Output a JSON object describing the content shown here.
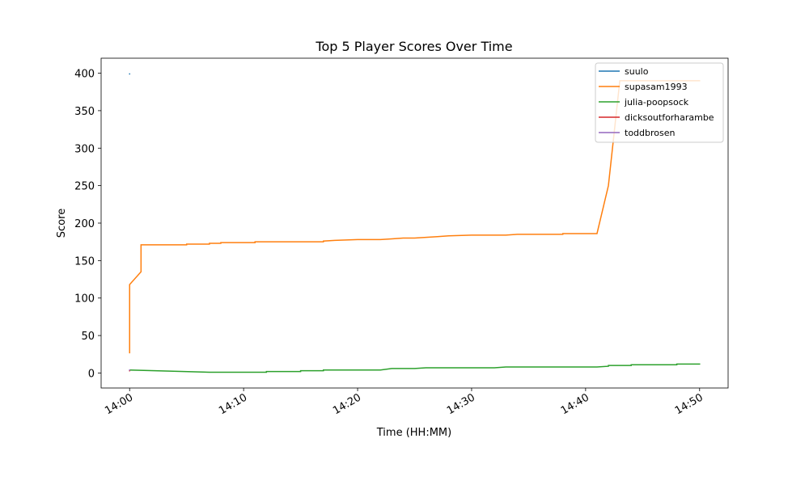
{
  "chart_data": {
    "type": "line",
    "title": "Top 5 Player Scores Over Time",
    "x_label": "Time (HH:MM)",
    "y_label": "Score",
    "xlim": [
      "13:57:30",
      "14:52:30"
    ],
    "xticks": [
      "14:00",
      "14:10",
      "14:20",
      "14:30",
      "14:40",
      "14:50"
    ],
    "ylim": [
      -20,
      420
    ],
    "yticks": [
      0,
      50,
      100,
      150,
      200,
      250,
      300,
      350,
      400
    ],
    "grid": false,
    "legend": "upper right",
    "series": [
      {
        "name": "suulo",
        "color": "#1f77b4",
        "x": [
          "14:00",
          "14:00"
        ],
        "values": [
          399,
          399
        ]
      },
      {
        "name": "supasam1993",
        "color": "#ff7f0e",
        "x": [
          "14:00",
          "14:00",
          "14:01",
          "14:01",
          "14:05",
          "14:05",
          "14:07",
          "14:07",
          "14:08",
          "14:08",
          "14:11",
          "14:11",
          "14:17",
          "14:17",
          "14:18",
          "14:20",
          "14:22",
          "14:23",
          "14:24",
          "14:25",
          "14:26",
          "14:27",
          "14:28",
          "14:30",
          "14:33",
          "14:34",
          "14:38",
          "14:38",
          "14:41",
          "14:42",
          "14:43",
          "14:50"
        ],
        "values": [
          27,
          118,
          135,
          171,
          171,
          172,
          172,
          173,
          173,
          174,
          174,
          175,
          175,
          176,
          177,
          178,
          178,
          179,
          180,
          180,
          181,
          182,
          183,
          184,
          184,
          185,
          185,
          186,
          186,
          250,
          390,
          390
        ]
      },
      {
        "name": "julia-poopsock",
        "color": "#2ca02c",
        "x": [
          "14:00",
          "14:07",
          "14:12",
          "14:12",
          "14:15",
          "14:15",
          "14:17",
          "14:17",
          "14:22",
          "14:23",
          "14:25",
          "14:26",
          "14:32",
          "14:33",
          "14:41",
          "14:42",
          "14:42",
          "14:44",
          "14:44",
          "14:48",
          "14:48",
          "14:50"
        ],
        "values": [
          4,
          1,
          1,
          2,
          2,
          3,
          3,
          4,
          4,
          6,
          6,
          7,
          7,
          8,
          8,
          9,
          10,
          10,
          11,
          11,
          12,
          12
        ]
      },
      {
        "name": "dicksoutforharambe",
        "color": "#d62728",
        "x": [
          "14:00",
          "14:00"
        ],
        "values": [
          3,
          3
        ]
      },
      {
        "name": "toddbrosen",
        "color": "#9467bd",
        "x": [
          "14:00",
          "14:00"
        ],
        "values": [
          4,
          4
        ]
      }
    ]
  }
}
